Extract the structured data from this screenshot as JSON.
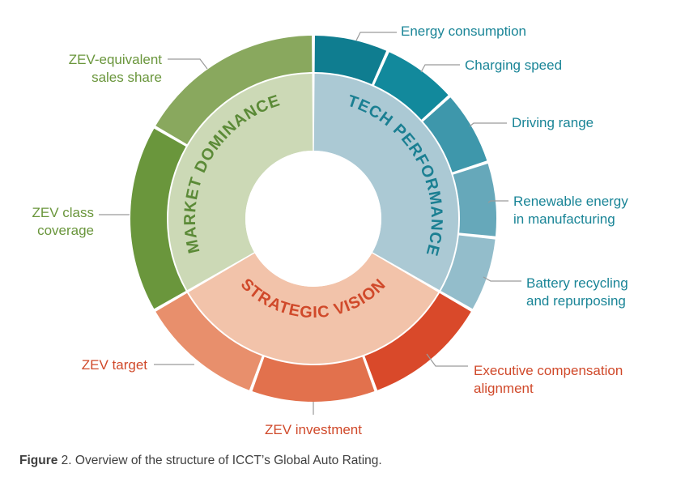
{
  "categories": [
    {
      "id": "tech",
      "label": "TECH PERFORMANCE",
      "inner_color": "#abc9d4",
      "label_color": "#1a7f92",
      "items": [
        {
          "label_lines": [
            "Energy consumption"
          ],
          "color": "#0f7d90"
        },
        {
          "label_lines": [
            "Charging speed"
          ],
          "color": "#12899c"
        },
        {
          "label_lines": [
            "Driving range"
          ],
          "color": "#3e97ab"
        },
        {
          "label_lines": [
            "Renewable energy",
            "in manufacturing"
          ],
          "color": "#66a8ba"
        },
        {
          "label_lines": [
            "Battery recycling",
            "and repurposing"
          ],
          "color": "#93bdcb"
        }
      ],
      "text_color": "#1a8597"
    },
    {
      "id": "strategic",
      "label": "STRATEGIC VISION",
      "inner_color": "#f2c3aa",
      "label_color": "#d0492a",
      "items": [
        {
          "label_lines": [
            "Executive compensation",
            "alignment"
          ],
          "color": "#d9492a"
        },
        {
          "label_lines": [
            "ZEV investment"
          ],
          "color": "#e2714d"
        },
        {
          "label_lines": [
            "ZEV target"
          ],
          "color": "#e88f6c"
        }
      ],
      "text_color": "#d0492a"
    },
    {
      "id": "market",
      "label": "MARKET DOMINANCE",
      "inner_color": "#ccd9b6",
      "label_color": "#5b8a37",
      "items": [
        {
          "label_lines": [
            "ZEV class",
            "coverage"
          ],
          "color": "#6a963c"
        },
        {
          "label_lines": [
            "ZEV-equivalent",
            "sales share"
          ],
          "color": "#89a85e"
        }
      ],
      "text_color": "#6a963c"
    }
  ],
  "caption": {
    "bold": "Figure",
    "rest": " 2. Overview of the structure of ICCT’s Global Auto Rating."
  }
}
